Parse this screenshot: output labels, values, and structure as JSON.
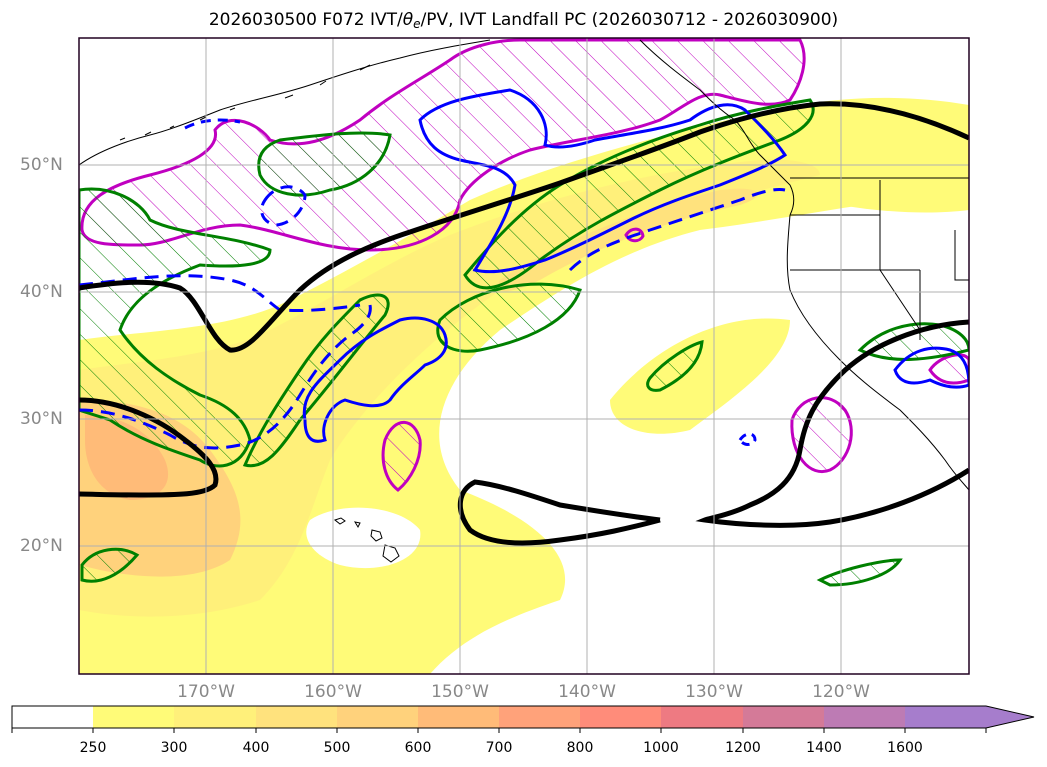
{
  "title": {
    "prefix": "2026030500 F072 IVT/",
    "theta": "θ",
    "theta_sub": "e",
    "suffix": "/PV, IVT Landfall PC (2026030712 - 2026030900)"
  },
  "map": {
    "lat_labels": [
      "50°N",
      "40°N",
      "30°N",
      "20°N"
    ],
    "lon_labels": [
      "170°W",
      "160°W",
      "150°W",
      "140°W",
      "130°W",
      "120°W"
    ]
  },
  "colorbar": {
    "ticks": [
      "250",
      "300",
      "400",
      "500",
      "600",
      "700",
      "800",
      "1000",
      "1200",
      "1400",
      "1600"
    ],
    "colors": {
      "c0": "#ffffff",
      "c1": "#fffb78",
      "c2": "#fff07a",
      "c3": "#ffe27d",
      "c4": "#ffd27c",
      "c5": "#ffbb78",
      "c6": "#ffa27a",
      "c7": "#ff8c7a",
      "c8": "#ee7a82",
      "c9": "#d47a98",
      "c10": "#bd7bb4",
      "c11": "#a67dcc"
    }
  },
  "legend_colors": {
    "ivt_contour": "#000000",
    "theta_e_positive": "#0000ff",
    "pv_magenta": "#c000c0",
    "pv_green": "#008000"
  }
}
